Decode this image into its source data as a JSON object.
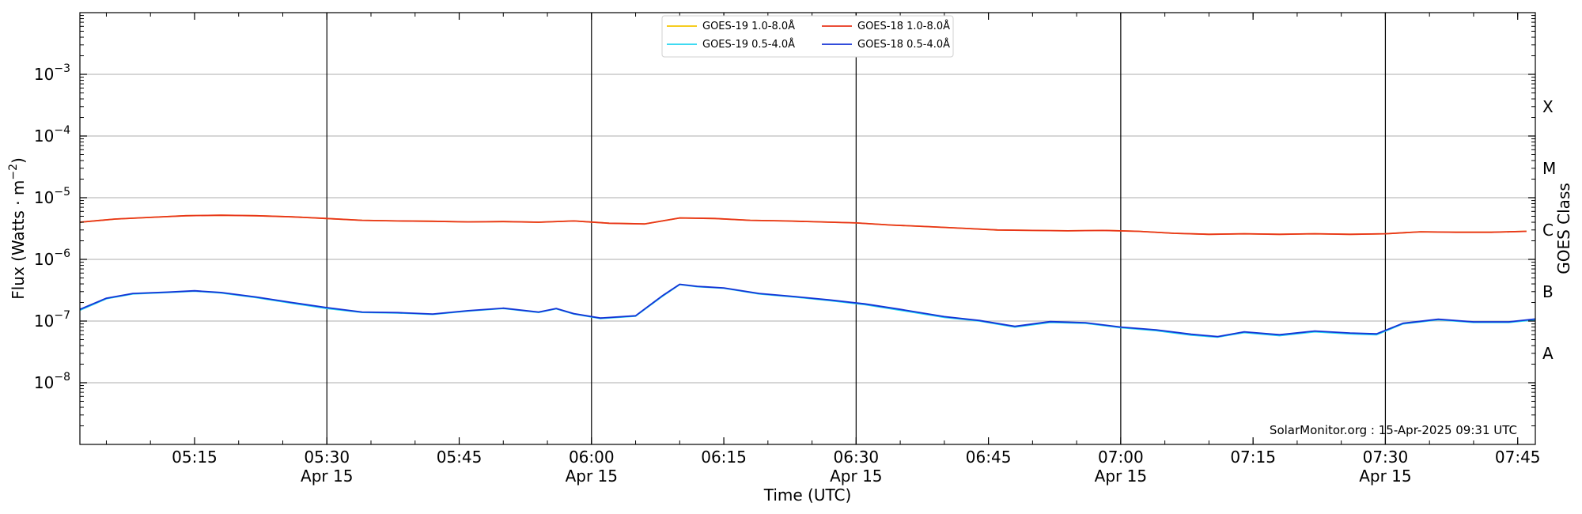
{
  "chart_data": {
    "type": "line",
    "xlabel": "Time (UTC)",
    "ylabel": "Flux (Watts · m⁻²)",
    "y2label": "GOES Class",
    "yscale": "log",
    "ylim": [
      1e-09,
      0.01
    ],
    "xlim": [
      "05:02",
      "07:47"
    ],
    "grid": "horizontal",
    "legend_position": "top-center",
    "credit": "SolarMonitor.org : 15-Apr-2025 09:31 UTC",
    "y_ticks": [
      {
        "value": 1e-08,
        "base": "10",
        "exp": "−8"
      },
      {
        "value": 1e-07,
        "base": "10",
        "exp": "−7"
      },
      {
        "value": 1e-06,
        "base": "10",
        "exp": "−6"
      },
      {
        "value": 1e-05,
        "base": "10",
        "exp": "−5"
      },
      {
        "value": 0.0001,
        "base": "10",
        "exp": "−4"
      },
      {
        "value": 0.001,
        "base": "10",
        "exp": "−3"
      }
    ],
    "x_ticks": [
      {
        "time": "05:15",
        "label": "05:15",
        "date": ""
      },
      {
        "time": "05:30",
        "label": "05:30",
        "date": "Apr 15"
      },
      {
        "time": "05:45",
        "label": "05:45",
        "date": ""
      },
      {
        "time": "06:00",
        "label": "06:00",
        "date": "Apr 15"
      },
      {
        "time": "06:15",
        "label": "06:15",
        "date": ""
      },
      {
        "time": "06:30",
        "label": "06:30",
        "date": "Apr 15"
      },
      {
        "time": "06:45",
        "label": "06:45",
        "date": ""
      },
      {
        "time": "07:00",
        "label": "07:00",
        "date": "Apr 15"
      },
      {
        "time": "07:15",
        "label": "07:15",
        "date": ""
      },
      {
        "time": "07:30",
        "label": "07:30",
        "date": "Apr 15"
      },
      {
        "time": "07:45",
        "label": "07:45",
        "date": ""
      }
    ],
    "vlines": [
      "05:30",
      "06:00",
      "06:30",
      "07:00",
      "07:30"
    ],
    "goes_classes": [
      {
        "label": "A",
        "value": 3e-08
      },
      {
        "label": "B",
        "value": 3e-07
      },
      {
        "label": "C",
        "value": 3e-06
      },
      {
        "label": "M",
        "value": 3e-05
      },
      {
        "label": "X",
        "value": 0.0003
      }
    ],
    "series": [
      {
        "name": "GOES-19 1.0-8.0Å",
        "color": "#f5c400",
        "x": [
          "05:02",
          "05:06",
          "05:10",
          "05:14",
          "05:18",
          "05:22",
          "05:26",
          "05:30",
          "05:34",
          "05:38",
          "05:42",
          "05:46",
          "05:50",
          "05:54",
          "05:58",
          "06:02",
          "06:06",
          "06:10",
          "06:14",
          "06:18",
          "06:22",
          "06:26",
          "06:30",
          "06:34",
          "06:38",
          "06:42",
          "06:46",
          "06:50",
          "06:54",
          "06:58",
          "07:02",
          "07:06",
          "07:10",
          "07:14",
          "07:18",
          "07:22",
          "07:26",
          "07:30",
          "07:34",
          "07:38",
          "07:42",
          "07:46"
        ],
        "y": [
          4e-06,
          4.5e-06,
          4.8e-06,
          5.1e-06,
          5.2e-06,
          5.1e-06,
          4.9e-06,
          4.6e-06,
          4.3e-06,
          4.2e-06,
          4.15e-06,
          4.05e-06,
          4.1e-06,
          4e-06,
          4.2e-06,
          3.85e-06,
          3.75e-06,
          4.7e-06,
          4.6e-06,
          4.3e-06,
          4.2e-06,
          4.05e-06,
          3.9e-06,
          3.6e-06,
          3.4e-06,
          3.2e-06,
          3e-06,
          2.95e-06,
          2.9e-06,
          2.95e-06,
          2.85e-06,
          2.65e-06,
          2.55e-06,
          2.6e-06,
          2.55e-06,
          2.6e-06,
          2.55e-06,
          2.6e-06,
          2.8e-06,
          2.75e-06,
          2.75e-06,
          2.85e-06
        ]
      },
      {
        "name": "GOES-18 1.0-8.0Å",
        "color": "#e8341c",
        "x": [
          "05:02",
          "05:06",
          "05:10",
          "05:14",
          "05:18",
          "05:22",
          "05:26",
          "05:30",
          "05:34",
          "05:38",
          "05:42",
          "05:46",
          "05:50",
          "05:54",
          "05:58",
          "06:02",
          "06:06",
          "06:10",
          "06:14",
          "06:18",
          "06:22",
          "06:26",
          "06:30",
          "06:34",
          "06:38",
          "06:42",
          "06:46",
          "06:50",
          "06:54",
          "06:58",
          "07:02",
          "07:06",
          "07:10",
          "07:14",
          "07:18",
          "07:22",
          "07:26",
          "07:30",
          "07:34",
          "07:38",
          "07:42",
          "07:46"
        ],
        "y": [
          4e-06,
          4.5e-06,
          4.8e-06,
          5.1e-06,
          5.2e-06,
          5.1e-06,
          4.9e-06,
          4.6e-06,
          4.3e-06,
          4.2e-06,
          4.15e-06,
          4.05e-06,
          4.1e-06,
          4e-06,
          4.2e-06,
          3.85e-06,
          3.75e-06,
          4.7e-06,
          4.6e-06,
          4.3e-06,
          4.2e-06,
          4.05e-06,
          3.9e-06,
          3.6e-06,
          3.4e-06,
          3.2e-06,
          3e-06,
          2.95e-06,
          2.9e-06,
          2.95e-06,
          2.85e-06,
          2.65e-06,
          2.55e-06,
          2.6e-06,
          2.55e-06,
          2.6e-06,
          2.55e-06,
          2.6e-06,
          2.8e-06,
          2.75e-06,
          2.75e-06,
          2.85e-06
        ]
      },
      {
        "name": "GOES-19 0.5-4.0Å",
        "color": "#22d4f0",
        "x": [
          "05:02",
          "05:05",
          "05:08",
          "05:12",
          "05:15",
          "05:18",
          "05:22",
          "05:26",
          "05:30",
          "05:34",
          "05:38",
          "05:42",
          "05:46",
          "05:50",
          "05:54",
          "05:56",
          "05:58",
          "06:01",
          "06:05",
          "06:08",
          "06:10",
          "06:12",
          "06:15",
          "06:19",
          "06:23",
          "06:27",
          "06:31",
          "06:35",
          "06:40",
          "06:44",
          "06:48",
          "06:52",
          "06:56",
          "07:00",
          "07:04",
          "07:08",
          "07:11",
          "07:14",
          "07:18",
          "07:22",
          "07:26",
          "07:29",
          "07:32",
          "07:36",
          "07:40",
          "07:44",
          "07:47"
        ],
        "y": [
          1.5e-07,
          2.3e-07,
          2.75e-07,
          2.9e-07,
          3.05e-07,
          2.85e-07,
          2.4e-07,
          1.95e-07,
          1.6e-07,
          1.38e-07,
          1.35e-07,
          1.28e-07,
          1.45e-07,
          1.6e-07,
          1.38e-07,
          1.58e-07,
          1.3e-07,
          1.1e-07,
          1.2e-07,
          2.5e-07,
          3.9e-07,
          3.6e-07,
          3.4e-07,
          2.75e-07,
          2.45e-07,
          2.15e-07,
          1.85e-07,
          1.5e-07,
          1.15e-07,
          1e-07,
          8e-08,
          9.5e-08,
          9.2e-08,
          7.8e-08,
          7e-08,
          5.9e-08,
          5.5e-08,
          6.5e-08,
          5.8e-08,
          6.7e-08,
          6.2e-08,
          6e-08,
          9e-08,
          1.05e-07,
          9.5e-08,
          9.5e-08,
          1.05e-07
        ]
      },
      {
        "name": "GOES-18 0.5-4.0Å",
        "color": "#1533d6",
        "x": [
          "05:02",
          "05:05",
          "05:08",
          "05:12",
          "05:15",
          "05:18",
          "05:22",
          "05:26",
          "05:30",
          "05:34",
          "05:38",
          "05:42",
          "05:46",
          "05:50",
          "05:54",
          "05:56",
          "05:58",
          "06:01",
          "06:05",
          "06:08",
          "06:10",
          "06:12",
          "06:15",
          "06:19",
          "06:23",
          "06:27",
          "06:31",
          "06:35",
          "06:40",
          "06:44",
          "06:48",
          "06:52",
          "06:56",
          "07:00",
          "07:04",
          "07:08",
          "07:11",
          "07:14",
          "07:18",
          "07:22",
          "07:26",
          "07:29",
          "07:32",
          "07:36",
          "07:40",
          "07:44",
          "07:47"
        ],
        "y": [
          1.55e-07,
          2.35e-07,
          2.8e-07,
          2.95e-07,
          3.1e-07,
          2.9e-07,
          2.45e-07,
          2e-07,
          1.65e-07,
          1.4e-07,
          1.37e-07,
          1.3e-07,
          1.47e-07,
          1.62e-07,
          1.4e-07,
          1.6e-07,
          1.32e-07,
          1.12e-07,
          1.22e-07,
          2.55e-07,
          3.95e-07,
          3.65e-07,
          3.45e-07,
          2.8e-07,
          2.5e-07,
          2.2e-07,
          1.9e-07,
          1.55e-07,
          1.18e-07,
          1.02e-07,
          8.2e-08,
          9.8e-08,
          9.4e-08,
          8e-08,
          7.2e-08,
          6.1e-08,
          5.6e-08,
          6.7e-08,
          6e-08,
          6.9e-08,
          6.4e-08,
          6.2e-08,
          9.2e-08,
          1.07e-07,
          9.7e-08,
          9.7e-08,
          1.08e-07
        ]
      }
    ],
    "legend_order": [
      0,
      2,
      1,
      3
    ]
  }
}
